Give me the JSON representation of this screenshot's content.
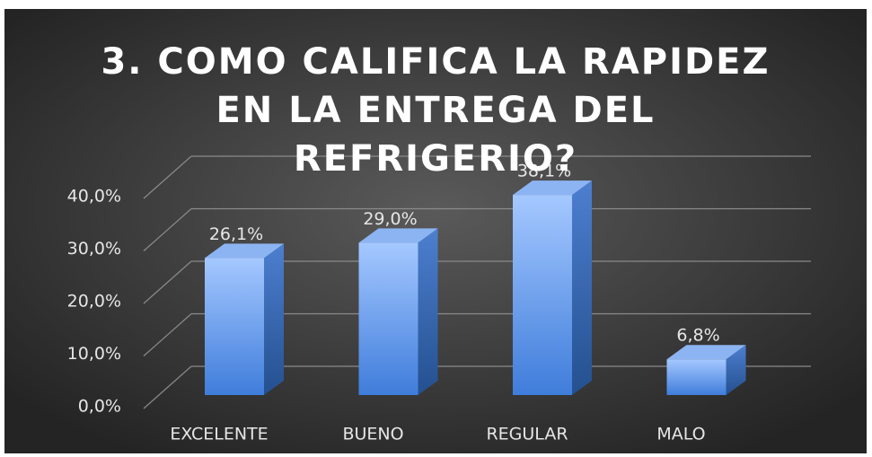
{
  "chart_data": {
    "type": "bar3d",
    "title": "3. COMO CALIFICA LA RAPIDEZ EN LA ENTREGA DEL REFRIGERIO?",
    "categories": [
      "EXCELENTE",
      "BUENO",
      "REGULAR",
      "MALO"
    ],
    "values": [
      26.1,
      29.0,
      38.1,
      6.8
    ],
    "value_labels": [
      "26,1%",
      "29,0%",
      "38,1%",
      "6,8%"
    ],
    "color": "#5b9bf5",
    "ylim": [
      0,
      40
    ],
    "yticks": [
      {
        "value": 0,
        "label": "0,0%"
      },
      {
        "value": 10,
        "label": "10,0%"
      },
      {
        "value": 20,
        "label": "20,0%"
      },
      {
        "value": 30,
        "label": "30,0%"
      },
      {
        "value": 40,
        "label": "40,0%"
      }
    ],
    "grid": true
  }
}
